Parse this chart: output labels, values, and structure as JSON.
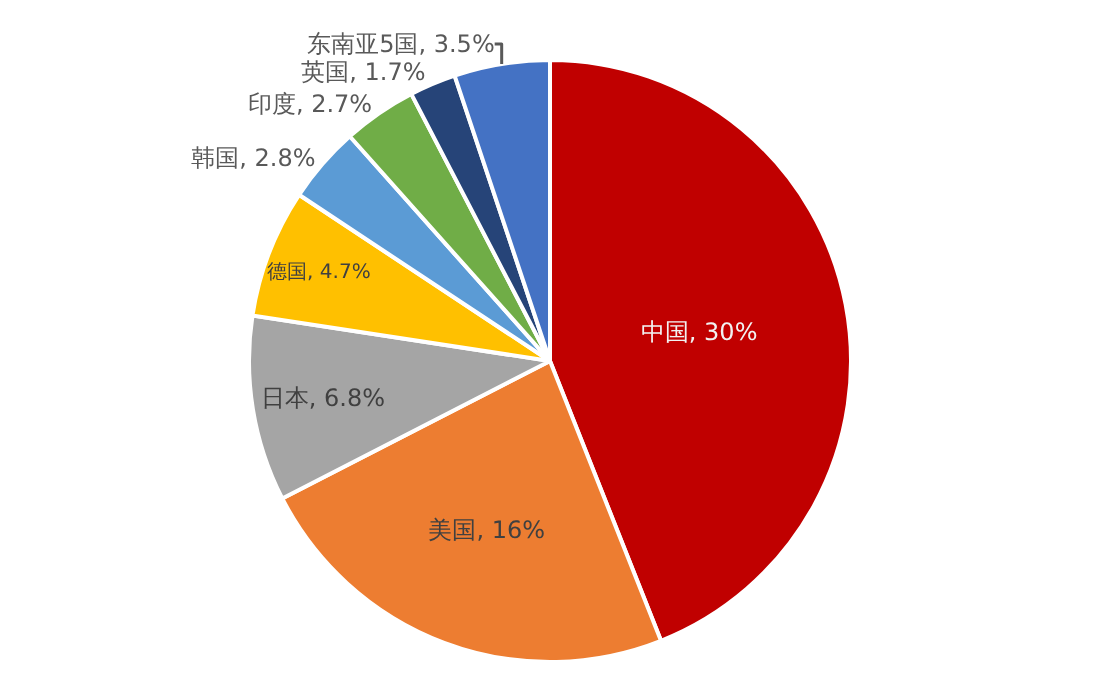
{
  "chart_data": {
    "type": "pie",
    "categories": [
      "中国",
      "美国",
      "日本",
      "德国",
      "韩国",
      "印度",
      "英国",
      "东南亚5国"
    ],
    "values": [
      30,
      16,
      6.8,
      4.7,
      2.8,
      2.7,
      1.7,
      3.5
    ],
    "value_labels": [
      "30%",
      "16%",
      "6.8%",
      "4.7%",
      "2.8%",
      "2.7%",
      "1.7%",
      "3.5%"
    ],
    "colors": [
      "#c00000",
      "#ed7d31",
      "#a5a5a5",
      "#ffc000",
      "#5b9bd5",
      "#70ad47",
      "#264478",
      "#4472c4"
    ],
    "legend": false
  }
}
